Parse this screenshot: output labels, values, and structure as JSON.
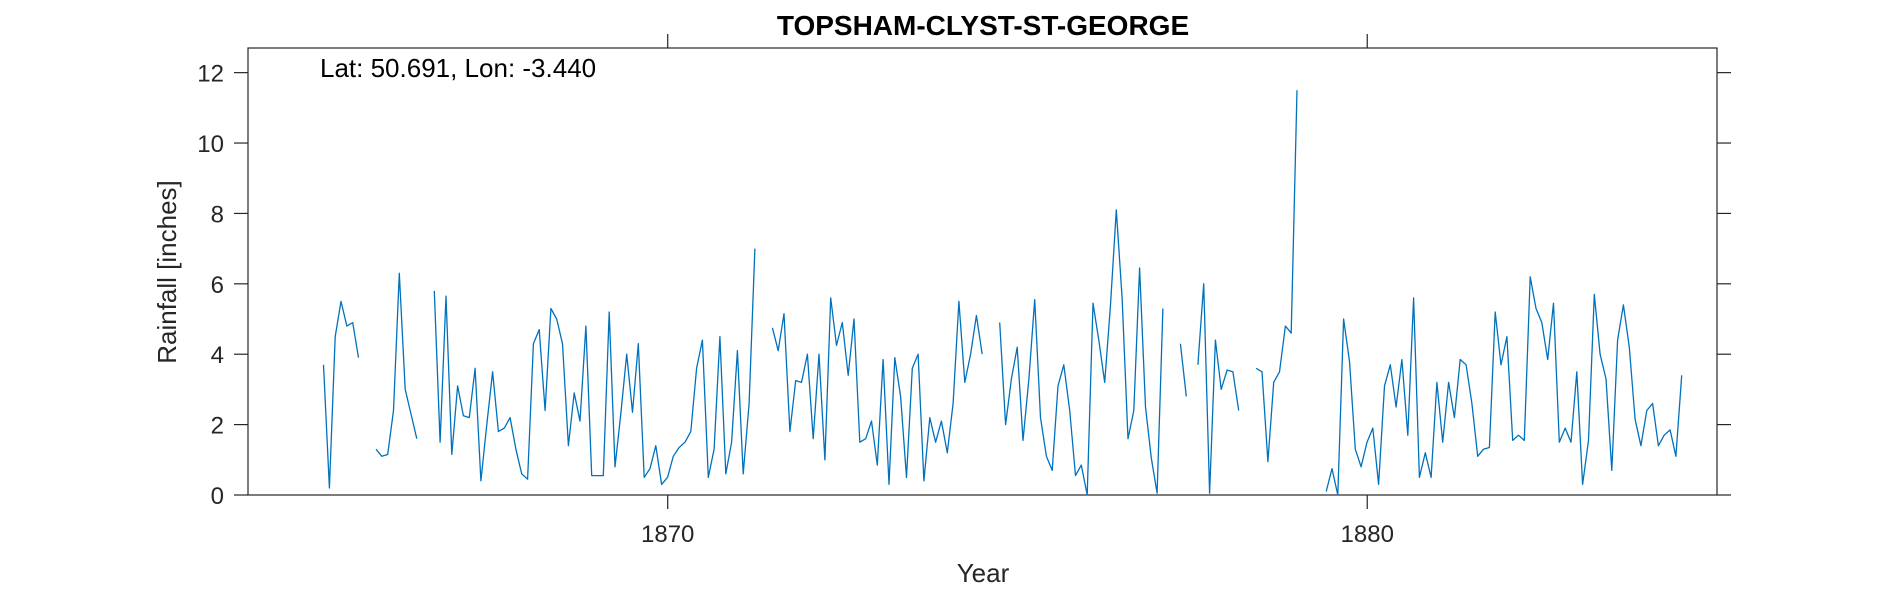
{
  "chart_data": {
    "type": "line",
    "title": "TOPSHAM-CLYST-ST-GEORGE",
    "xlabel": "Year",
    "ylabel": "Rainfall [inches]",
    "annotation": "Lat: 50.691, Lon: -3.440",
    "xlim": [
      1864.0,
      1885.0
    ],
    "ylim": [
      0,
      12.7
    ],
    "xticks": [
      1870,
      1880
    ],
    "yticks": [
      0,
      2,
      4,
      6,
      8,
      10,
      12
    ],
    "grid": false,
    "series_color": "#0072BD",
    "series": [
      {
        "x_start": 1865.08,
        "x_step": 0.08333,
        "values": [
          3.7,
          0.2,
          4.5,
          5.5,
          4.8,
          4.9,
          3.9,
          null,
          null,
          1.3,
          1.1,
          1.15,
          2.4,
          6.3,
          3.0,
          2.3,
          1.6,
          null,
          null,
          5.8,
          1.5,
          5.65,
          1.15,
          3.1,
          2.25,
          2.2,
          3.6,
          0.4,
          2.0,
          3.5,
          1.8,
          1.9,
          2.2,
          1.3,
          0.6,
          0.45,
          4.3,
          4.7,
          2.4,
          5.3,
          5.0,
          4.3,
          1.4,
          2.9,
          2.1,
          4.8,
          0.55,
          0.55,
          0.55,
          5.2,
          0.8,
          2.3,
          4.0,
          2.35,
          4.3,
          0.5,
          0.75,
          1.4,
          0.3,
          0.5,
          1.1,
          1.35,
          1.5,
          1.8,
          3.6,
          4.4,
          0.5,
          1.3,
          4.5,
          0.6,
          1.5,
          4.1,
          0.6,
          2.6,
          7.0,
          null,
          null,
          4.75,
          4.1,
          5.15,
          1.8,
          3.25,
          3.2,
          4.0,
          1.6,
          4.0,
          1.0,
          5.6,
          4.25,
          4.9,
          3.4,
          5.0,
          1.5,
          1.6,
          2.1,
          0.85,
          3.85,
          0.3,
          3.9,
          2.8,
          0.5,
          3.6,
          4.0,
          0.4,
          2.2,
          1.5,
          2.1,
          1.2,
          2.6,
          5.5,
          3.2,
          4.0,
          5.1,
          4.0,
          null,
          null,
          4.9,
          2.0,
          3.3,
          4.2,
          1.55,
          3.3,
          5.55,
          2.2,
          1.1,
          0.7,
          3.1,
          3.7,
          2.4,
          0.55,
          0.85,
          0.0,
          5.45,
          4.4,
          3.2,
          5.4,
          8.1,
          5.6,
          1.6,
          2.4,
          6.45,
          2.5,
          1.05,
          0.05,
          5.3,
          null,
          null,
          4.3,
          2.8,
          null,
          3.7,
          6.0,
          0.05,
          4.4,
          3.0,
          3.55,
          3.5,
          2.4,
          null,
          null,
          3.6,
          3.5,
          0.95,
          3.2,
          3.5,
          4.8,
          4.6,
          11.5,
          null,
          null,
          null,
          null,
          0.1,
          0.75,
          0.0,
          5.0,
          3.8,
          1.3,
          0.8,
          1.5,
          1.9,
          0.3,
          3.1,
          3.7,
          2.5,
          3.85,
          1.7,
          5.6,
          0.5,
          1.2,
          0.5,
          3.2,
          1.5,
          3.2,
          2.2,
          3.85,
          3.7,
          2.6,
          1.1,
          1.3,
          1.35,
          5.2,
          3.7,
          4.5,
          1.55,
          1.7,
          1.55,
          6.2,
          5.3,
          4.9,
          3.85,
          5.45,
          1.5,
          1.9,
          1.5,
          3.5,
          0.3,
          1.55,
          5.7,
          4.0,
          3.3,
          0.7,
          4.4,
          5.4,
          4.2,
          2.15,
          1.4,
          2.4,
          2.6,
          1.4,
          1.7,
          1.85,
          1.1,
          3.4
        ]
      }
    ]
  }
}
